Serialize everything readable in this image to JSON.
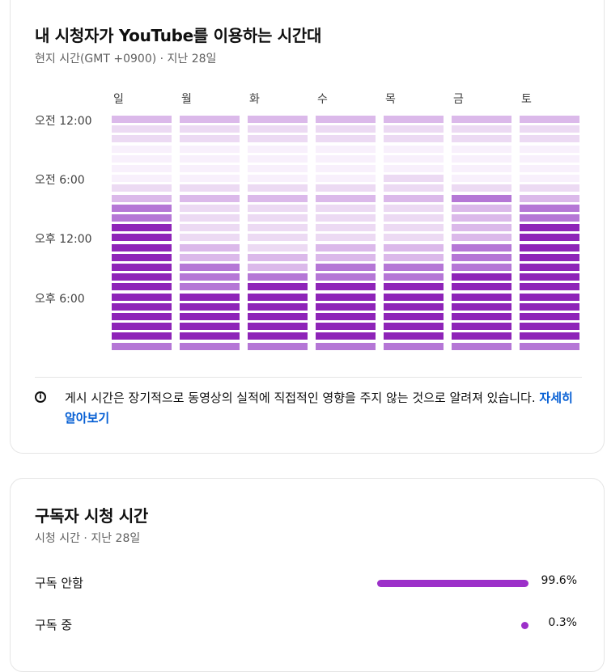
{
  "heatmap_card": {
    "title": "내 시청자가 YouTube를 이용하는 시간대",
    "subtitle": "현지 시간(GMT +0900) · 지난 28일",
    "info_text": "게시 시간은 장기적으로 동영상의 실적에 직접적인 영향을 주지 않는 것으로 알려져 있습니다. ",
    "info_link": "자세히 알아보기",
    "info_icon": "info-icon"
  },
  "chart_data": {
    "type": "heatmap",
    "title": "내 시청자가 YouTube를 이용하는 시간대",
    "x_labels": [
      "일",
      "월",
      "화",
      "수",
      "목",
      "금",
      "토"
    ],
    "y_labels": [
      "오전 12:00",
      "오전 6:00",
      "오후 12:00",
      "오후 6:00"
    ],
    "rows_per_day": 24,
    "scale": "0 = least viewers, 5 = most viewers",
    "values": [
      [
        3,
        3,
        3,
        3,
        3,
        3,
        3
      ],
      [
        2,
        2,
        2,
        2,
        2,
        2,
        2
      ],
      [
        2,
        2,
        2,
        2,
        2,
        2,
        2
      ],
      [
        1,
        1,
        1,
        1,
        1,
        1,
        1
      ],
      [
        1,
        1,
        1,
        1,
        1,
        1,
        1
      ],
      [
        1,
        1,
        1,
        1,
        1,
        1,
        1
      ],
      [
        1,
        1,
        1,
        1,
        2,
        1,
        1
      ],
      [
        2,
        2,
        2,
        2,
        2,
        2,
        2
      ],
      [
        3,
        3,
        3,
        3,
        3,
        4,
        3
      ],
      [
        4,
        2,
        2,
        2,
        2,
        3,
        4
      ],
      [
        4,
        2,
        2,
        2,
        2,
        3,
        4
      ],
      [
        5,
        2,
        2,
        2,
        2,
        3,
        5
      ],
      [
        5,
        2,
        2,
        2,
        2,
        3,
        5
      ],
      [
        5,
        3,
        2,
        3,
        3,
        4,
        5
      ],
      [
        5,
        3,
        3,
        3,
        3,
        4,
        5
      ],
      [
        5,
        4,
        3,
        4,
        4,
        4,
        5
      ],
      [
        5,
        4,
        4,
        4,
        4,
        5,
        5
      ],
      [
        5,
        4,
        5,
        5,
        5,
        5,
        5
      ],
      [
        5,
        5,
        5,
        5,
        5,
        5,
        5
      ],
      [
        5,
        5,
        5,
        5,
        5,
        5,
        5
      ],
      [
        5,
        5,
        5,
        5,
        5,
        5,
        5
      ],
      [
        5,
        5,
        5,
        5,
        5,
        5,
        5
      ],
      [
        5,
        5,
        5,
        5,
        5,
        5,
        5
      ],
      [
        4,
        4,
        4,
        4,
        4,
        4,
        4
      ]
    ],
    "colors": [
      "#fcf7fe",
      "#f8f0fc",
      "#ecdaf3",
      "#dbb9ea",
      "#b577d6",
      "#8e24b8"
    ]
  },
  "subscribers_card": {
    "title": "구독자 시청 시간",
    "subtitle": "시청 시간 · 지난 28일",
    "rows": [
      {
        "label": "구독 안함",
        "value": "99.6%",
        "fraction": 0.996
      },
      {
        "label": "구독 중",
        "value": "0.3%",
        "fraction": 0.003
      }
    ],
    "accent": "#9c30c9"
  }
}
